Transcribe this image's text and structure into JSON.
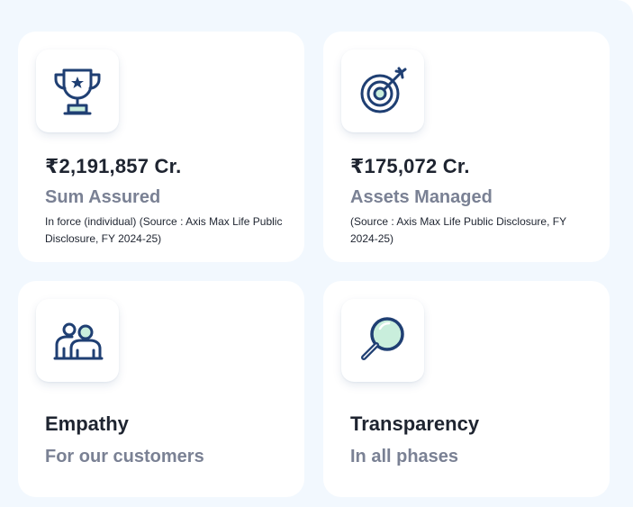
{
  "cards": [
    {
      "icon": "trophy-icon",
      "value": "₹2,191,857 Cr.",
      "label": "Sum Assured",
      "description": "In force (individual) (Source : Axis Max Life Public Disclosure, FY 2024-25)"
    },
    {
      "icon": "target-icon",
      "value": "₹175,072 Cr.",
      "label": "Assets Managed",
      "description": "(Source : Axis Max Life Public Disclosure, FY 2024-25)"
    },
    {
      "icon": "people-icon",
      "title": "Empathy",
      "subtitle": "For our customers"
    },
    {
      "icon": "magnifier-icon",
      "title": "Transparency",
      "subtitle": "In all phases"
    }
  ],
  "colors": {
    "background": "#f2f8fe",
    "icon_navy": "#1f3f73",
    "accent_mint": "#c9eedc",
    "text_dark": "#1e2430",
    "text_muted": "#7a8194"
  }
}
